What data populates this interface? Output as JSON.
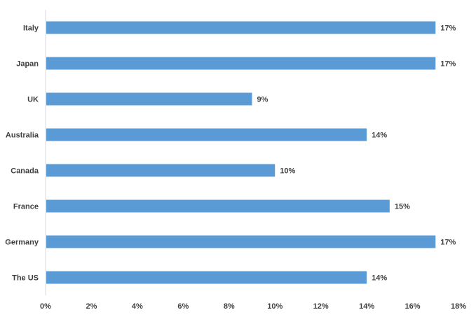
{
  "chart_data": {
    "type": "bar",
    "orientation": "horizontal",
    "categories": [
      "Italy",
      "Japan",
      "UK",
      "Australia",
      "Canada",
      "France",
      "Germany",
      "The US"
    ],
    "values": [
      17,
      17,
      9,
      14,
      10,
      15,
      17,
      14
    ],
    "data_labels": [
      "17%",
      "17%",
      "9%",
      "14%",
      "10%",
      "15%",
      "17%",
      "14%"
    ],
    "xlim": [
      0,
      18
    ],
    "x_ticks": [
      0,
      2,
      4,
      6,
      8,
      10,
      12,
      14,
      16,
      18
    ],
    "x_tick_labels": [
      "0%",
      "2%",
      "4%",
      "6%",
      "8%",
      "10%",
      "12%",
      "14%",
      "16%",
      "18%"
    ],
    "title": "",
    "xlabel": "",
    "ylabel": "",
    "grid": false,
    "legend": "none",
    "bar_color": "#5b9bd5"
  }
}
